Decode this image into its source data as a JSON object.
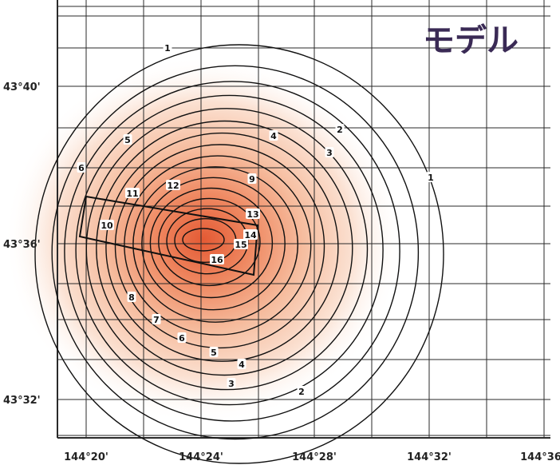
{
  "title": "モデル",
  "axes": {
    "longitude_labels": [
      "144°20'",
      "144°24'",
      "144°28'",
      "144°32'",
      "144°36'"
    ],
    "latitude_labels": [
      "43°40'",
      "43°36'",
      "43°32'"
    ]
  },
  "contour_levels": [
    "1",
    "2",
    "3",
    "4",
    "5",
    "6",
    "7",
    "8",
    "9",
    "10",
    "11",
    "12",
    "13",
    "14",
    "15",
    "16"
  ],
  "contour_labels": [
    {
      "text": "1"
    },
    {
      "text": "1"
    },
    {
      "text": "2"
    },
    {
      "text": "2"
    },
    {
      "text": "3"
    },
    {
      "text": "3"
    },
    {
      "text": "4"
    },
    {
      "text": "4"
    },
    {
      "text": "5"
    },
    {
      "text": "5"
    },
    {
      "text": "6"
    },
    {
      "text": "6"
    },
    {
      "text": "7"
    },
    {
      "text": "8"
    },
    {
      "text": "9"
    },
    {
      "text": "10"
    },
    {
      "text": "11"
    },
    {
      "text": "12"
    },
    {
      "text": "13"
    },
    {
      "text": "14"
    },
    {
      "text": "15"
    },
    {
      "text": "16"
    }
  ],
  "colors": {
    "peak": "#e8603a",
    "low": "#ffffff",
    "contour": "#111111",
    "grid": "#222222",
    "title": "#3a2a55"
  }
}
